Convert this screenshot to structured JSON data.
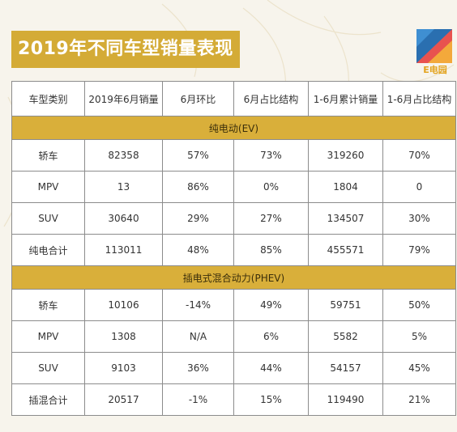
{
  "title": "2019年不同车型销量表现",
  "logo": {
    "text": "E电园",
    "colors": [
      "#2a6fb0",
      "#e8524f",
      "#f3a93b"
    ]
  },
  "colors": {
    "accent": "#d4ab36",
    "group_row": "#d9af3a",
    "border": "#8c8c8c"
  },
  "table": {
    "headers": [
      "车型类别",
      "2019年6月销量",
      "6月环比",
      "6月占比结构",
      "1-6月累计销量",
      "1-6月占比结构"
    ],
    "ev_group": {
      "label": "纯电动(EV)",
      "rows": [
        [
          "轿车",
          "82358",
          "57%",
          "73%",
          "319260",
          "70%"
        ],
        [
          "MPV",
          "13",
          "86%",
          "0%",
          "1804",
          "0"
        ],
        [
          "SUV",
          "30640",
          "29%",
          "27%",
          "134507",
          "30%"
        ],
        [
          "纯电合计",
          "113011",
          "48%",
          "85%",
          "455571",
          "79%"
        ]
      ]
    },
    "phev_group": {
      "label": "插电式混合动力(PHEV)",
      "rows": [
        [
          "轿车",
          "10106",
          "-14%",
          "49%",
          "59751",
          "50%"
        ],
        [
          "MPV",
          "1308",
          "N/A",
          "6%",
          "5582",
          "5%"
        ],
        [
          "SUV",
          "9103",
          "36%",
          "44%",
          "54157",
          "45%"
        ],
        [
          "插混合计",
          "20517",
          "-1%",
          "15%",
          "119490",
          "21%"
        ]
      ]
    }
  }
}
